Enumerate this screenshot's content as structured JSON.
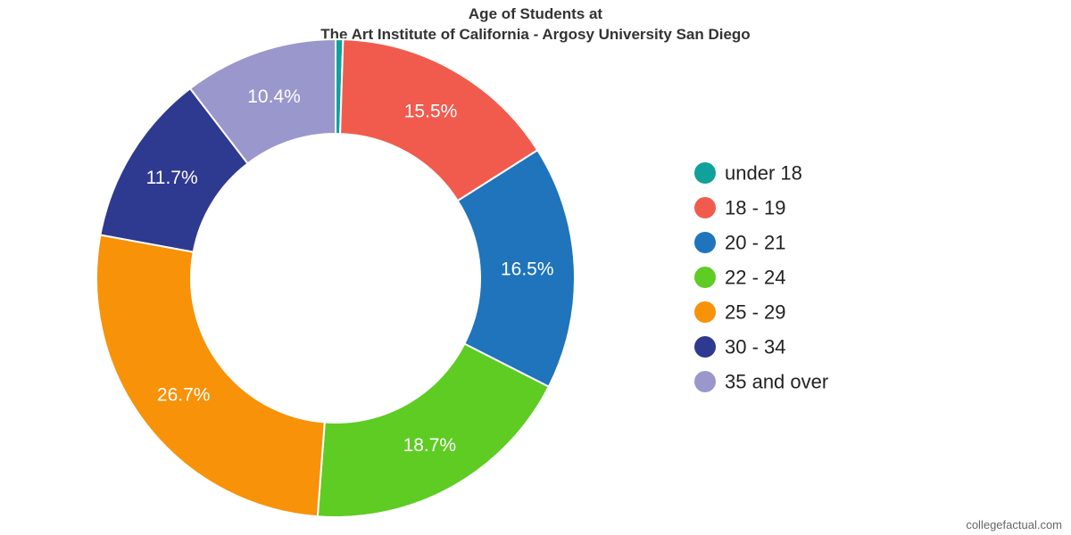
{
  "chart_data": {
    "type": "pie",
    "donut": true,
    "title": "Age of Students at",
    "subtitle": "The Art Institute of California - Argosy University San Diego",
    "categories": [
      "under 18",
      "18 - 19",
      "20 - 21",
      "22 - 24",
      "25 - 29",
      "30 - 34",
      "35 and over"
    ],
    "values": [
      0.5,
      15.5,
      16.5,
      18.7,
      26.7,
      11.7,
      10.4
    ],
    "labels": [
      "",
      "15.5%",
      "16.5%",
      "18.7%",
      "26.7%",
      "11.7%",
      "10.4%"
    ],
    "colors": [
      "#12a19a",
      "#f15b4e",
      "#1f74bb",
      "#5ecc23",
      "#f79209",
      "#2e3990",
      "#9a97cc"
    ],
    "legend_position": "right"
  },
  "credit": "collegefactual.com"
}
